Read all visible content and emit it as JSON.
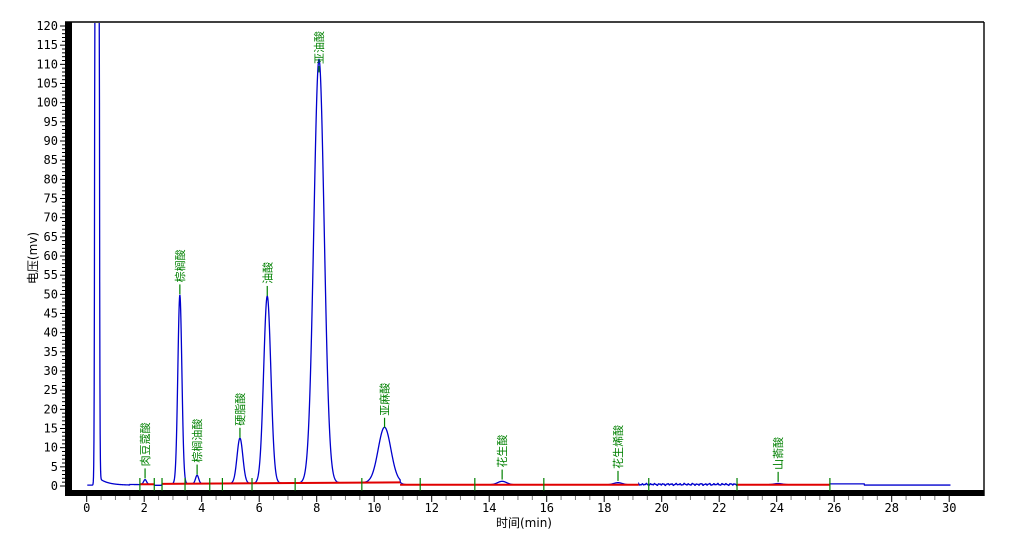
{
  "window": {
    "background": "#ffffff"
  },
  "chart_data": {
    "type": "line",
    "chart_kind": "gc-chromatogram",
    "title": "",
    "xlabel": "时间(min)",
    "ylabel": "电压(mv)",
    "x_unit": "min",
    "y_unit": "mv",
    "xlim": [
      0,
      31.2
    ],
    "ylim": [
      0,
      121
    ],
    "x_ticks": [
      0,
      2,
      4,
      6,
      8,
      10,
      12,
      14,
      16,
      18,
      20,
      22,
      24,
      26,
      28,
      30
    ],
    "x_minor_step": 0.5,
    "y_ticks": [
      0,
      5,
      10,
      15,
      20,
      25,
      30,
      35,
      40,
      45,
      50,
      55,
      60,
      65,
      70,
      75,
      80,
      85,
      90,
      95,
      100,
      105,
      110,
      115,
      120
    ],
    "y_minor_step": 1,
    "grid": false,
    "legend": "none",
    "colors": {
      "trace": "#0000cd",
      "integration_baseline": "#e00000",
      "peak_labels": "#008000",
      "axis": "#000000",
      "minor_tick": "#777777"
    },
    "solvent_front": {
      "time": 0.36,
      "height_mv": 2500,
      "clipped_at_top": true,
      "sigma_min": 0.033,
      "tail_mv": 2.3,
      "tail_tau_min": 0.3
    },
    "peaks": [
      {
        "name": "肉豆蔻酸",
        "retention_time_min": 2.03,
        "height_mv": 1.2,
        "sigma_min": 0.05
      },
      {
        "name": "棕榈酸",
        "retention_time_min": 3.24,
        "height_mv": 49.2,
        "sigma_min": 0.07
      },
      {
        "name": "棕榈油酸",
        "retention_time_min": 3.84,
        "height_mv": 2.2,
        "sigma_min": 0.055
      },
      {
        "name": "硬脂酸",
        "retention_time_min": 5.33,
        "height_mv": 11.8,
        "sigma_min": 0.1
      },
      {
        "name": "油酸",
        "retention_time_min": 6.28,
        "height_mv": 48.8,
        "sigma_min": 0.125
      },
      {
        "name": "亚油酸",
        "retention_time_min": 8.08,
        "height_mv": 110.5,
        "sigma_min": 0.18
      },
      {
        "name": "亚麻酸",
        "retention_time_min": 10.36,
        "height_mv": 14.4,
        "sigma_min": 0.22
      },
      {
        "name": "花生酸",
        "retention_time_min": 14.45,
        "height_mv": 0.9,
        "sigma_min": 0.16
      },
      {
        "name": "花生烯酸",
        "retention_time_min": 18.48,
        "height_mv": 0.55,
        "sigma_min": 0.15
      },
      {
        "name": "山萮酸",
        "retention_time_min": 24.05,
        "height_mv": 0.3,
        "sigma_min": 0.15
      }
    ],
    "integration_baseline_segments": [
      {
        "from": 1.85,
        "to": 2.35,
        "level_start": 0.45,
        "level_end": 0.45
      },
      {
        "from": 2.62,
        "to": 10.9,
        "level_start": 0.55,
        "level_end": 0.95
      },
      {
        "from": 10.9,
        "to": 19.2,
        "level_start": 0.32,
        "level_end": 0.32
      },
      {
        "from": 22.6,
        "to": 25.85,
        "level_start": 0.34,
        "level_end": 0.34
      }
    ],
    "trace_segments": [
      {
        "from": 0.0,
        "to": 1.5,
        "level": 0.22
      },
      {
        "from": 1.5,
        "to": 1.85,
        "level": 0.35
      },
      {
        "from": 1.85,
        "to": 2.35,
        "level": 0.45
      },
      {
        "from": 2.35,
        "to": 2.62,
        "level": 0.18
      },
      {
        "from": 2.62,
        "to": 10.9,
        "level_start": 0.55,
        "level_end": 0.95
      },
      {
        "from": 10.9,
        "to": 19.2,
        "level": 0.32
      },
      {
        "from": 19.2,
        "to": 22.6,
        "level": 0.42,
        "noise": 0.3
      },
      {
        "from": 22.6,
        "to": 25.85,
        "level": 0.34
      },
      {
        "from": 25.85,
        "to": 27.05,
        "level": 0.55
      },
      {
        "from": 27.05,
        "to": 30.06,
        "level": 0.25
      }
    ],
    "integration_marks_min": [
      1.85,
      2.35,
      2.62,
      3.42,
      4.28,
      4.72,
      5.75,
      7.25,
      9.57,
      11.6,
      13.5,
      15.9,
      19.55,
      22.62,
      25.85
    ],
    "trace_end_min": 30.05
  }
}
